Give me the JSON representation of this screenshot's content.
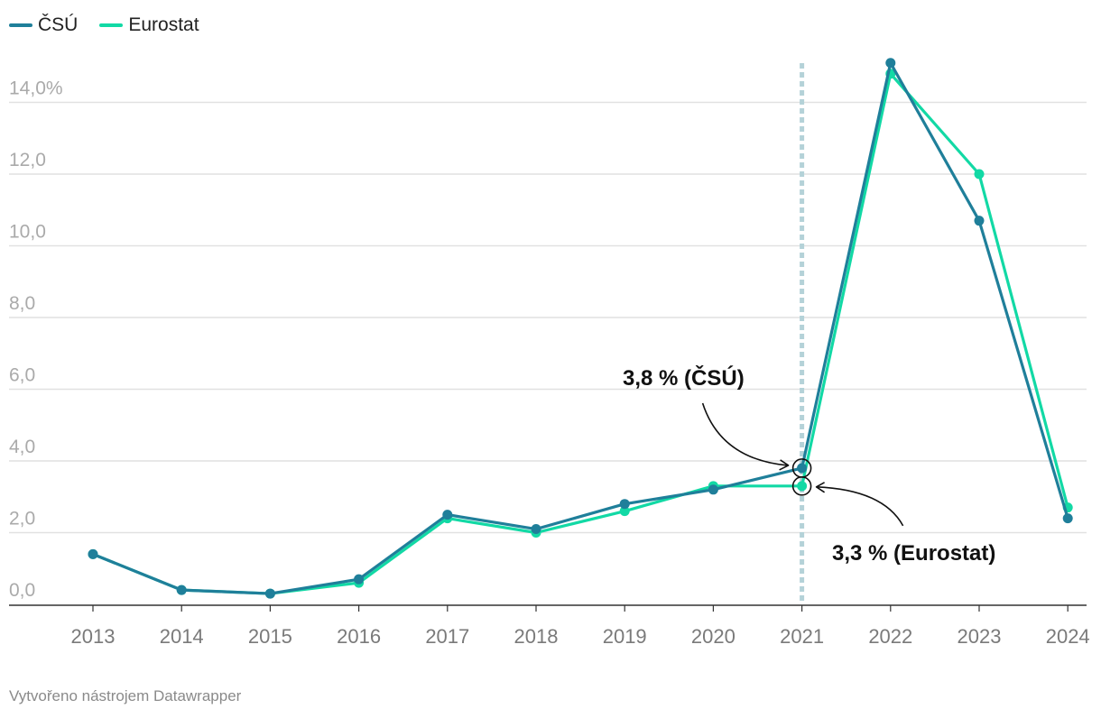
{
  "legend": {
    "items": [
      {
        "label": "ČSÚ",
        "color": "#1f7f9a"
      },
      {
        "label": "Eurostat",
        "color": "#12d9a5"
      }
    ]
  },
  "chart_data": {
    "type": "line",
    "title": "",
    "xlabel": "",
    "ylabel": "",
    "ylim": [
      0,
      15
    ],
    "y_ticks": [
      0,
      2,
      4,
      6,
      8,
      10,
      12,
      14
    ],
    "y_tick_labels": [
      "0,0",
      "2,0",
      "4,0",
      "6,0",
      "8,0",
      "10,0",
      "12,0",
      "14,0%"
    ],
    "categories": [
      "2013",
      "2014",
      "2015",
      "2016",
      "2017",
      "2018",
      "2019",
      "2020",
      "2021",
      "2022",
      "2023",
      "2024"
    ],
    "highlight_category": "2021",
    "series": [
      {
        "name": "Eurostat",
        "color": "#12d9a5",
        "values": [
          1.4,
          0.4,
          0.3,
          0.6,
          2.4,
          2.0,
          2.6,
          3.3,
          3.3,
          14.8,
          12.0,
          2.7
        ]
      },
      {
        "name": "ČSÚ",
        "color": "#1f7f9a",
        "values": [
          1.4,
          0.4,
          0.3,
          0.7,
          2.5,
          2.1,
          2.8,
          3.2,
          3.8,
          15.1,
          10.7,
          2.4
        ]
      }
    ],
    "annotations": [
      {
        "text": "3,8 % (ČSÚ)",
        "category": "2021",
        "value": 3.8,
        "side": "upper-left"
      },
      {
        "text": "3,3 % (Eurostat)",
        "category": "2021",
        "value": 3.3,
        "side": "lower-right"
      }
    ]
  },
  "footer": "Vytvořeno nástrojem Datawrapper"
}
